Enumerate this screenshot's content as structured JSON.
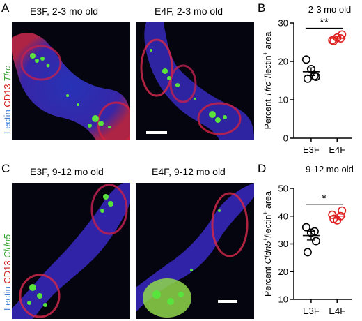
{
  "panels": {
    "A": {
      "letter": "A",
      "left_title": "E3F, 2-3 mo old",
      "right_title": "E4F, 2-3 mo old",
      "stain": {
        "lectin": "Lectin",
        "cd13": "CD13",
        "marker": "Tfrc"
      }
    },
    "B": {
      "letter": "B"
    },
    "C": {
      "letter": "C",
      "left_title": "E3F, 9-12 mo old",
      "right_title": "E4F, 9-12 mo old",
      "stain": {
        "lectin": "Lectin",
        "cd13": "CD13",
        "marker": "Cldn5"
      }
    },
    "D": {
      "letter": "D"
    }
  },
  "colors": {
    "lectin": "#3a7bd5",
    "cd13": "#d22020",
    "marker": "#3aa635",
    "e4": "#e02020",
    "e3": "#000000"
  },
  "chart_data": [
    {
      "type": "scatter",
      "title": "2-3 mo old",
      "ylabel_parts": [
        "Percent ",
        "Tfrc",
        "+",
        "/lectin",
        "+",
        " area"
      ],
      "ylim": [
        0,
        30
      ],
      "yticks": [
        0,
        10,
        20,
        30
      ],
      "categories": [
        "E3F",
        "E4F"
      ],
      "significance": "**",
      "series": [
        {
          "name": "E3F",
          "values": [
            20.5,
            18.0,
            16.0,
            15.5,
            16.2
          ],
          "mean": 17.3,
          "sem": 1.0,
          "color": "#000000"
        },
        {
          "name": "E4F",
          "values": [
            25.5,
            26.2,
            27.0,
            25.3,
            26.0
          ],
          "mean": 26.0,
          "sem": 0.4,
          "color": "#e02020"
        }
      ]
    },
    {
      "type": "scatter",
      "title": "9-12 mo old",
      "ylabel_parts": [
        "Percent ",
        "Cldn5",
        "+",
        "/lectin",
        "+",
        " area"
      ],
      "ylim": [
        10,
        50
      ],
      "yticks": [
        10,
        20,
        30,
        40,
        50
      ],
      "categories": [
        "E3F",
        "E4F"
      ],
      "significance": "*",
      "series": [
        {
          "name": "E3F",
          "values": [
            36.0,
            34.0,
            31.0,
            27.0,
            34.5
          ],
          "mean": 33.0,
          "sem": 1.6,
          "color": "#000000"
        },
        {
          "name": "E4F",
          "values": [
            40.5,
            38.5,
            42.0,
            39.0,
            40.0
          ],
          "mean": 40.0,
          "sem": 0.8,
          "color": "#e02020"
        }
      ]
    }
  ]
}
